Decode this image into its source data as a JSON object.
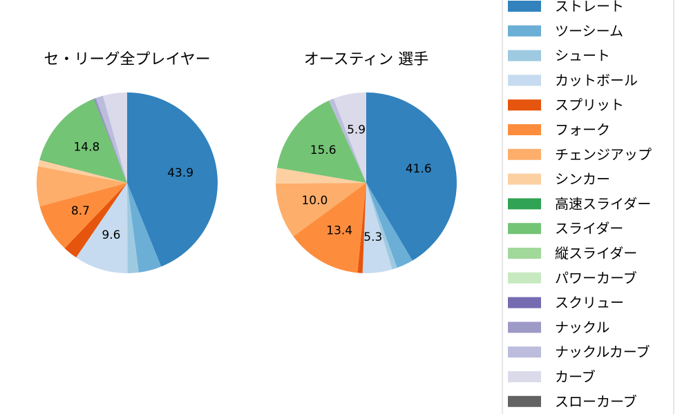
{
  "chart_data": [
    {
      "type": "pie",
      "title": "セ・リーグ全プレイヤー",
      "slices": [
        {
          "name": "ストレート",
          "value": 43.9,
          "label": "43.9"
        },
        {
          "name": "ツーシーム",
          "value": 4.1,
          "label": ""
        },
        {
          "name": "シュート",
          "value": 2.0,
          "label": ""
        },
        {
          "name": "カットボール",
          "value": 9.6,
          "label": "9.6"
        },
        {
          "name": "スプリット",
          "value": 2.6,
          "label": ""
        },
        {
          "name": "フォーク",
          "value": 8.7,
          "label": "8.7"
        },
        {
          "name": "チェンジアップ",
          "value": 7.1,
          "label": ""
        },
        {
          "name": "シンカー",
          "value": 1.2,
          "label": ""
        },
        {
          "name": "高速スライダー",
          "value": 0.1,
          "label": ""
        },
        {
          "name": "スライダー",
          "value": 14.8,
          "label": "14.8"
        },
        {
          "name": "縦スライダー",
          "value": 0.0,
          "label": ""
        },
        {
          "name": "パワーカーブ",
          "value": 0.0,
          "label": ""
        },
        {
          "name": "スクリュー",
          "value": 0.1,
          "label": ""
        },
        {
          "name": "ナックル",
          "value": 0.3,
          "label": ""
        },
        {
          "name": "ナックルカーブ",
          "value": 1.3,
          "label": ""
        },
        {
          "name": "カーブ",
          "value": 4.3,
          "label": ""
        },
        {
          "name": "スローカーブ",
          "value": 0.0,
          "label": ""
        }
      ]
    },
    {
      "type": "pie",
      "title": "オースティン 選手",
      "slices": [
        {
          "name": "ストレート",
          "value": 41.6,
          "label": "41.6"
        },
        {
          "name": "ツーシーム",
          "value": 3.0,
          "label": ""
        },
        {
          "name": "シュート",
          "value": 0.9,
          "label": ""
        },
        {
          "name": "カットボール",
          "value": 5.3,
          "label": "5.3"
        },
        {
          "name": "スプリット",
          "value": 0.9,
          "label": ""
        },
        {
          "name": "フォーク",
          "value": 13.4,
          "label": "13.4"
        },
        {
          "name": "チェンジアップ",
          "value": 10.0,
          "label": "10.0"
        },
        {
          "name": "シンカー",
          "value": 2.8,
          "label": ""
        },
        {
          "name": "高速スライダー",
          "value": 0.0,
          "label": ""
        },
        {
          "name": "スライダー",
          "value": 15.6,
          "label": "15.6"
        },
        {
          "name": "縦スライダー",
          "value": 0.0,
          "label": ""
        },
        {
          "name": "パワーカーブ",
          "value": 0.0,
          "label": ""
        },
        {
          "name": "スクリュー",
          "value": 0.0,
          "label": ""
        },
        {
          "name": "ナックル",
          "value": 0.0,
          "label": ""
        },
        {
          "name": "ナックルカーブ",
          "value": 0.9,
          "label": ""
        },
        {
          "name": "カーブ",
          "value": 5.9,
          "label": "5.9"
        },
        {
          "name": "スローカーブ",
          "value": 0.0,
          "label": ""
        }
      ]
    }
  ],
  "legend": {
    "placement": "right",
    "items": [
      {
        "name": "ストレート",
        "color": "#3182bd"
      },
      {
        "name": "ツーシーム",
        "color": "#6baed6"
      },
      {
        "name": "シュート",
        "color": "#9ecae1"
      },
      {
        "name": "カットボール",
        "color": "#c6dbef"
      },
      {
        "name": "スプリット",
        "color": "#e6550d"
      },
      {
        "name": "フォーク",
        "color": "#fd8d3c"
      },
      {
        "name": "チェンジアップ",
        "color": "#fdae6b"
      },
      {
        "name": "シンカー",
        "color": "#fdd0a2"
      },
      {
        "name": "高速スライダー",
        "color": "#31a354"
      },
      {
        "name": "スライダー",
        "color": "#74c476"
      },
      {
        "name": "縦スライダー",
        "color": "#a1d99b"
      },
      {
        "name": "パワーカーブ",
        "color": "#c7e9c0"
      },
      {
        "name": "スクリュー",
        "color": "#756bb1"
      },
      {
        "name": "ナックル",
        "color": "#9e9ac8"
      },
      {
        "name": "ナックルカーブ",
        "color": "#bcbddc"
      },
      {
        "name": "カーブ",
        "color": "#dadaeb"
      },
      {
        "name": "スローカーブ",
        "color": "#636363"
      }
    ]
  }
}
